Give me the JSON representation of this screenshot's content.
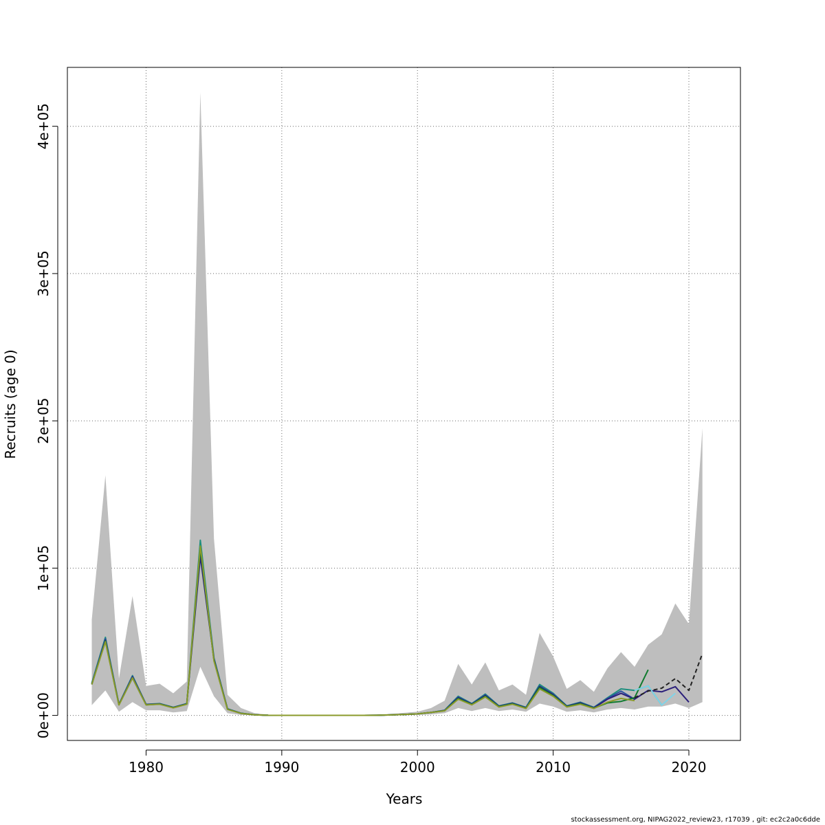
{
  "chart_data": {
    "type": "line",
    "title": "",
    "xlabel": "Years",
    "ylabel": "Recruits (age 0)",
    "xlim": [
      1974.2,
      2023.8
    ],
    "ylim": [
      -17000,
      440000
    ],
    "x_ticks": [
      1980,
      1990,
      2000,
      2010,
      2020
    ],
    "x_tick_labels": [
      "1980",
      "1990",
      "2000",
      "2010",
      "2020"
    ],
    "y_ticks": [
      0,
      100000,
      200000,
      300000,
      400000
    ],
    "y_tick_labels": [
      "0e+00",
      "1e+05",
      "2e+05",
      "3e+05",
      "4e+05"
    ],
    "grid": true,
    "legend": "none",
    "band": {
      "color": "#bebebe",
      "x": [
        1976,
        1977,
        1978,
        1979,
        1980,
        1981,
        1982,
        1983,
        1984,
        1985,
        1986,
        1987,
        1988,
        1989,
        1990,
        1991,
        1992,
        1993,
        1994,
        1995,
        1996,
        1997,
        1998,
        1999,
        2000,
        2001,
        2002,
        2003,
        2004,
        2005,
        2006,
        2007,
        2008,
        2009,
        2010,
        2011,
        2012,
        2013,
        2014,
        2015,
        2016,
        2017,
        2018,
        2019,
        2020,
        2021
      ],
      "upper": [
        65000,
        163000,
        25000,
        81000,
        20000,
        21500,
        15000,
        23000,
        423000,
        120000,
        14000,
        5000,
        1500,
        500,
        300,
        200,
        200,
        200,
        200,
        200,
        300,
        500,
        1000,
        1700,
        2500,
        5000,
        10000,
        35000,
        21000,
        36000,
        17000,
        21000,
        14000,
        56000,
        40000,
        18000,
        24000,
        16000,
        32000,
        43000,
        33000,
        48000,
        55000,
        76000,
        62000,
        195000
      ],
      "lower": [
        7000,
        17000,
        2500,
        9000,
        3500,
        3500,
        2000,
        3000,
        33000,
        13000,
        1500,
        300,
        100,
        50,
        30,
        20,
        20,
        20,
        20,
        20,
        30,
        50,
        100,
        200,
        300,
        700,
        1500,
        5000,
        3000,
        5000,
        3000,
        4000,
        2500,
        8000,
        6000,
        2500,
        3500,
        2000,
        4000,
        5000,
        4000,
        6000,
        6000,
        8000,
        5000,
        9000
      ]
    },
    "series": [
      {
        "color": "#1f8f7f",
        "x": [
          1976,
          1977,
          1978,
          1979,
          1980,
          1981,
          1982,
          1983,
          1984,
          1985,
          1986,
          1987,
          1988,
          1989,
          1990,
          1991,
          1992,
          1993,
          1994,
          1995,
          1996,
          1997,
          1998,
          1999,
          2000,
          2001,
          2002,
          2003,
          2004,
          2005,
          2006,
          2007,
          2008,
          2009,
          2010,
          2011,
          2012,
          2013,
          2014,
          2015,
          2016,
          2017,
          2018
        ],
        "y": [
          22000,
          53000,
          7500,
          27000,
          7500,
          8000,
          5500,
          8000,
          119000,
          39000,
          4500,
          1500,
          400,
          100,
          50,
          30,
          30,
          30,
          30,
          30,
          50,
          100,
          300,
          600,
          1000,
          2000,
          3500,
          13000,
          8000,
          14500,
          6500,
          8500,
          5500,
          21000,
          15000,
          6500,
          9000,
          5500,
          12000,
          18000,
          17000,
          20000,
          7000
        ]
      },
      {
        "color": "#2a4fa0",
        "x": [
          1976,
          1977,
          1978,
          1979,
          1980,
          1981,
          1982,
          1983,
          1984,
          1985,
          1986,
          1987,
          1988,
          1989,
          1990,
          1991,
          1992,
          1993,
          1994,
          1995,
          1996,
          1997,
          1998,
          1999,
          2000,
          2001,
          2002,
          2003,
          2004,
          2005,
          2006,
          2007,
          2008,
          2009,
          2010,
          2011,
          2012,
          2013,
          2014,
          2015,
          2016
        ],
        "y": [
          21500,
          52000,
          7400,
          26500,
          7400,
          7900,
          5400,
          7900,
          113000,
          38500,
          4400,
          1450,
          390,
          100,
          50,
          30,
          30,
          30,
          30,
          30,
          50,
          100,
          300,
          600,
          1000,
          2000,
          3400,
          12500,
          7800,
          14000,
          6300,
          8300,
          5300,
          20000,
          14500,
          6300,
          8700,
          5300,
          11500,
          16500,
          11000
        ]
      },
      {
        "color": "#2b1f7a",
        "x": [
          1976,
          1977,
          1978,
          1979,
          1980,
          1981,
          1982,
          1983,
          1984,
          1985,
          1986,
          1987,
          1988,
          1989,
          1990,
          1991,
          1992,
          1993,
          1994,
          1995,
          1996,
          1997,
          1998,
          1999,
          2000,
          2001,
          2002,
          2003,
          2004,
          2005,
          2006,
          2007,
          2008,
          2009,
          2010,
          2011,
          2012,
          2013,
          2014,
          2015,
          2016,
          2017,
          2018,
          2019,
          2020
        ],
        "y": [
          21000,
          51000,
          7300,
          26000,
          7300,
          7800,
          5300,
          7800,
          108000,
          38000,
          4300,
          1400,
          380,
          100,
          50,
          30,
          30,
          30,
          30,
          30,
          50,
          100,
          300,
          600,
          1000,
          2000,
          3300,
          12000,
          7600,
          13500,
          6100,
          8100,
          5100,
          19500,
          14000,
          6100,
          8400,
          5100,
          11000,
          15000,
          11000,
          17000,
          16000,
          19500,
          9000
        ]
      },
      {
        "color": "#0f7a2e",
        "x": [
          1976,
          1977,
          1978,
          1979,
          1980,
          1981,
          1982,
          1983,
          1984,
          1985,
          1986,
          1987,
          1988,
          1989,
          1990,
          1991,
          1992,
          1993,
          1994,
          1995,
          1996,
          1997,
          1998,
          1999,
          2000,
          2001,
          2002,
          2003,
          2004,
          2005,
          2006,
          2007,
          2008,
          2009,
          2010,
          2011,
          2012,
          2013,
          2014,
          2015,
          2016,
          2017
        ],
        "y": [
          21000,
          50500,
          7200,
          25500,
          7200,
          7700,
          5200,
          7700,
          113000,
          37500,
          4200,
          1400,
          370,
          100,
          50,
          30,
          30,
          30,
          30,
          30,
          50,
          100,
          300,
          600,
          1000,
          2000,
          3200,
          11500,
          7400,
          13000,
          5900,
          7900,
          4900,
          19000,
          13500,
          5900,
          8000,
          4900,
          8500,
          9500,
          12000,
          31000
        ]
      },
      {
        "color": "#8a9a2a",
        "x": [
          1976,
          1977,
          1978,
          1979,
          1980,
          1981,
          1982,
          1983,
          1984,
          1985,
          1986,
          1987,
          1988,
          1989,
          1990,
          1991,
          1992,
          1993,
          1994,
          1995,
          1996,
          1997,
          1998,
          1999,
          2000,
          2001,
          2002,
          2003,
          2004,
          2005,
          2006,
          2007,
          2008,
          2009,
          2010,
          2011,
          2012,
          2013,
          2014,
          2015,
          2016
        ],
        "y": [
          21000,
          50000,
          7100,
          25500,
          7100,
          7600,
          5100,
          7600,
          115000,
          37000,
          4100,
          1350,
          360,
          100,
          50,
          30,
          30,
          30,
          30,
          30,
          50,
          100,
          300,
          600,
          1000,
          2000,
          3100,
          11000,
          7200,
          12500,
          5700,
          7600,
          4700,
          18000,
          13000,
          5700,
          7600,
          4700,
          9000,
          11500,
          10000
        ]
      },
      {
        "color": "#7fd4e8",
        "x": [
          2016,
          2017,
          2018,
          2019
        ],
        "y": [
          17000,
          20000,
          7000,
          15000
        ]
      },
      {
        "color": "#222222",
        "dashed": true,
        "x": [
          2016,
          2017,
          2018,
          2019,
          2020,
          2021
        ],
        "y": [
          12000,
          16500,
          18500,
          25000,
          17000,
          42000
        ]
      }
    ]
  },
  "footer_text": "stockassessment.org, NIPAG2022_review23, r17039 , git: ec2c2a0c6dde"
}
